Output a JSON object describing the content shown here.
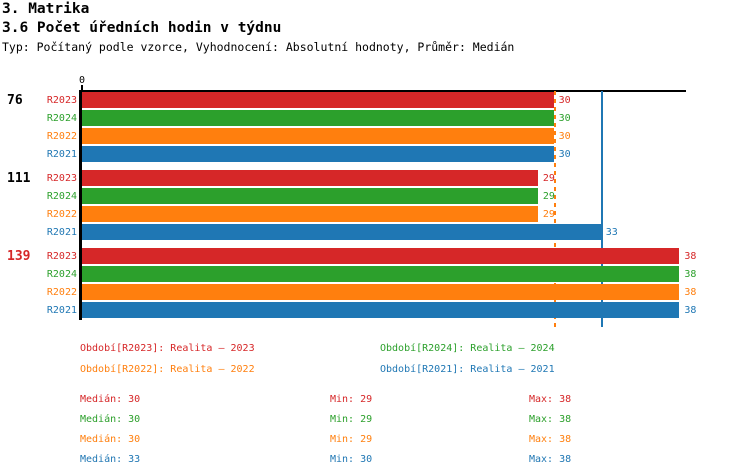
{
  "header": {
    "title": "3. Matrika",
    "subtitle": "3.6 Počet úředních hodin v týdnu",
    "meta": "Typ: Počítaný podle vzorce, Vyhodnocení: Absolutní hodnoty, Průměr: Medián"
  },
  "chart_data": {
    "type": "bar",
    "orientation": "horizontal",
    "origin_tick_label": "0",
    "x_axis_start": 0,
    "x_axis_end": 38.5,
    "grid": false,
    "series_order": [
      "R2023",
      "R2024",
      "R2022",
      "R2021"
    ],
    "series_colors": {
      "R2023": "#d62728",
      "R2024": "#2ca02c",
      "R2022": "#ff7f0e",
      "R2021": "#1f77b4"
    },
    "groups": [
      {
        "label": "76",
        "label_color": "#000000",
        "values": [
          30,
          30,
          30,
          30
        ]
      },
      {
        "label": "111",
        "label_color": "#000000",
        "values": [
          29,
          29,
          29,
          33
        ]
      },
      {
        "label": "139",
        "label_color": "#d62728",
        "values": [
          38,
          38,
          38,
          38
        ]
      }
    ],
    "reference_lines": [
      {
        "value": 30,
        "color": "#ff7f0e",
        "style": "dashed"
      },
      {
        "value": 33,
        "color": "#1f77b4",
        "style": "solid"
      }
    ]
  },
  "legend": {
    "items": [
      {
        "series": "R2023",
        "text": "Období[R2023]: Realita – 2023",
        "color": "#d62728",
        "row": 0,
        "col": 0
      },
      {
        "series": "R2024",
        "text": "Období[R2024]: Realita – 2024",
        "color": "#2ca02c",
        "row": 0,
        "col": 1
      },
      {
        "series": "R2022",
        "text": "Období[R2022]: Realita – 2022",
        "color": "#ff7f0e",
        "row": 1,
        "col": 0
      },
      {
        "series": "R2021",
        "text": "Období[R2021]: Realita – 2021",
        "color": "#1f77b4",
        "row": 1,
        "col": 1
      }
    ]
  },
  "stats": {
    "labels": {
      "median": "Medián",
      "min": "Min",
      "max": "Max"
    },
    "rows": [
      {
        "series": "R2023",
        "color": "#d62728",
        "median": "30",
        "min": "29",
        "max": "38"
      },
      {
        "series": "R2024",
        "color": "#2ca02c",
        "median": "30",
        "min": "29",
        "max": "38"
      },
      {
        "series": "R2022",
        "color": "#ff7f0e",
        "median": "30",
        "min": "29",
        "max": "38"
      },
      {
        "series": "R2021",
        "color": "#1f77b4",
        "median": "33",
        "min": "30",
        "max": "38"
      }
    ]
  }
}
